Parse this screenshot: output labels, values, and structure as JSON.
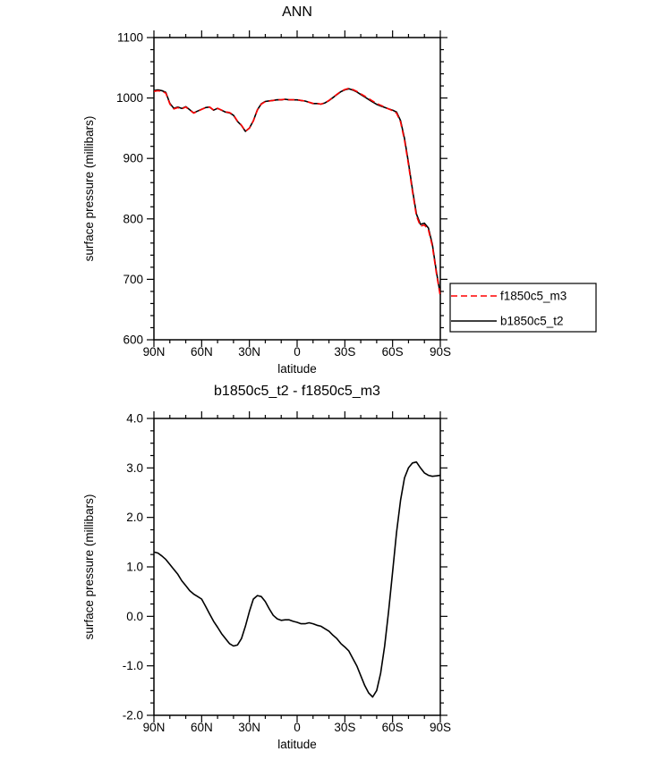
{
  "background": "#ffffff",
  "chart_data": [
    {
      "type": "line",
      "title": "ANN",
      "xlabel": "latitude",
      "ylabel": "surface pressure (millibars)",
      "xlim": [
        90,
        -90
      ],
      "ylim": [
        600,
        1100
      ],
      "grid": false,
      "xticks": {
        "values": [
          90,
          60,
          30,
          0,
          -30,
          -60,
          -90
        ],
        "labels": [
          "90N",
          "60N",
          "30N",
          "0",
          "30S",
          "60S",
          "90S"
        ],
        "minor_step": 10
      },
      "yticks": {
        "values": [
          600,
          700,
          800,
          900,
          1000,
          1100
        ],
        "labels": [
          "600",
          "700",
          "800",
          "900",
          "1000",
          "1100"
        ],
        "minor_step": 20
      },
      "legend": {
        "position": "outside-right-bottom",
        "entries": [
          {
            "label": "f1850c5_m3",
            "color": "#ff0000",
            "style": "dashed"
          },
          {
            "label": "b1850c5_t2",
            "color": "#000000",
            "style": "solid"
          }
        ]
      },
      "x": [
        90,
        87.5,
        85,
        82.5,
        80,
        77.5,
        75,
        72.5,
        70,
        67.5,
        65,
        62.5,
        60,
        57.5,
        55,
        52.5,
        50,
        47.5,
        45,
        42.5,
        40,
        37.5,
        35,
        32.5,
        30,
        27.5,
        25,
        22.5,
        20,
        17.5,
        15,
        12.5,
        10,
        7.5,
        5,
        2.5,
        0,
        -2.5,
        -5,
        -7.5,
        -10,
        -12.5,
        -15,
        -17.5,
        -20,
        -22.5,
        -25,
        -27.5,
        -30,
        -32.5,
        -35,
        -37.5,
        -40,
        -42.5,
        -45,
        -47.5,
        -50,
        -52.5,
        -55,
        -57.5,
        -60,
        -62.5,
        -65,
        -67.5,
        -70,
        -72.5,
        -75,
        -77.5,
        -80,
        -82.5,
        -85,
        -87.5,
        -90
      ],
      "series": [
        {
          "name": "f1850c5_m3",
          "color": "#ff0000",
          "style": "dashed",
          "values": [
            1011,
            1012,
            1011,
            1008,
            990,
            982,
            984,
            982,
            985,
            980,
            975,
            978,
            981,
            984,
            985,
            980,
            983,
            980,
            977,
            976,
            972,
            962,
            955,
            945,
            950,
            962,
            980,
            990,
            994,
            995,
            996,
            997,
            997,
            998,
            997,
            997,
            997,
            996,
            995,
            993,
            991,
            991,
            990,
            992,
            996,
            1001,
            1006,
            1011,
            1014,
            1016,
            1014,
            1011,
            1007,
            1003,
            999,
            995,
            991,
            988,
            985,
            982,
            979,
            975,
            960,
            930,
            890,
            845,
            805,
            788,
            790,
            782,
            755,
            710,
            672
          ]
        },
        {
          "name": "b1850c5_t2",
          "color": "#000000",
          "style": "solid",
          "values": [
            1012.3,
            1013.3,
            1012.2,
            1009.2,
            991.1,
            983,
            984.9,
            982.7,
            985.6,
            980.5,
            975.5,
            978.4,
            981.4,
            984.2,
            985.1,
            979.9,
            982.8,
            979.7,
            976.6,
            975.5,
            971.4,
            961.4,
            954.6,
            944.8,
            950.1,
            962.4,
            980.4,
            990.4,
            994.3,
            995.2,
            996,
            997,
            996.9,
            997.9,
            996.9,
            996.9,
            996.9,
            995.9,
            994.9,
            992.9,
            990.9,
            990.8,
            989.8,
            991.8,
            995.7,
            1000.6,
            1005.6,
            1010.5,
            1013.4,
            1015.3,
            1013.2,
            1010,
            1005.8,
            1001.6,
            997.5,
            993.4,
            989.5,
            986.9,
            984.4,
            982.1,
            979.9,
            976.7,
            962.4,
            932.8,
            893,
            848.1,
            808.1,
            791,
            792.9,
            784.9,
            757.8,
            712.8,
            674.9
          ]
        }
      ]
    },
    {
      "type": "line",
      "title": "b1850c5_t2 - f1850c5_m3",
      "xlabel": "latitude",
      "ylabel": "surface pressure (millibars)",
      "xlim": [
        90,
        -90
      ],
      "ylim": [
        -2.0,
        4.0
      ],
      "grid": false,
      "xticks": {
        "values": [
          90,
          60,
          30,
          0,
          -30,
          -60,
          -90
        ],
        "labels": [
          "90N",
          "60N",
          "30N",
          "0",
          "30S",
          "60S",
          "90S"
        ],
        "minor_step": 10
      },
      "yticks": {
        "values": [
          -2,
          -1,
          0,
          1,
          2,
          3,
          4
        ],
        "labels": [
          "-2.0",
          "-1.0",
          "0.0",
          "1.0",
          "2.0",
          "3.0",
          "4.0"
        ],
        "minor_step": 0.25
      },
      "x": [
        90,
        87.5,
        85,
        82.5,
        80,
        77.5,
        75,
        72.5,
        70,
        67.5,
        65,
        62.5,
        60,
        57.5,
        55,
        52.5,
        50,
        47.5,
        45,
        42.5,
        40,
        37.5,
        35,
        32.5,
        30,
        27.5,
        25,
        22.5,
        20,
        17.5,
        15,
        12.5,
        10,
        7.5,
        5,
        2.5,
        0,
        -2.5,
        -5,
        -7.5,
        -10,
        -12.5,
        -15,
        -17.5,
        -20,
        -22.5,
        -25,
        -27.5,
        -30,
        -32.5,
        -35,
        -37.5,
        -40,
        -42.5,
        -45,
        -47.5,
        -50,
        -52.5,
        -55,
        -57.5,
        -60,
        -62.5,
        -65,
        -67.5,
        -70,
        -72.5,
        -75,
        -77.5,
        -80,
        -82.5,
        -85,
        -87.5,
        -90
      ],
      "series": [
        {
          "name": "b1850c5_t2 - f1850c5_m3",
          "color": "#000000",
          "style": "solid",
          "values": [
            1.3,
            1.28,
            1.22,
            1.15,
            1.05,
            0.95,
            0.85,
            0.72,
            0.62,
            0.52,
            0.45,
            0.4,
            0.35,
            0.2,
            0.05,
            -0.1,
            -0.22,
            -0.35,
            -0.45,
            -0.55,
            -0.6,
            -0.58,
            -0.45,
            -0.2,
            0.1,
            0.35,
            0.42,
            0.4,
            0.3,
            0.15,
            0.02,
            -0.05,
            -0.08,
            -0.07,
            -0.07,
            -0.1,
            -0.12,
            -0.15,
            -0.15,
            -0.13,
            -0.15,
            -0.18,
            -0.2,
            -0.25,
            -0.3,
            -0.38,
            -0.45,
            -0.55,
            -0.62,
            -0.7,
            -0.85,
            -1.0,
            -1.2,
            -1.4,
            -1.55,
            -1.63,
            -1.5,
            -1.15,
            -0.6,
            0.1,
            0.9,
            1.7,
            2.35,
            2.8,
            3.0,
            3.1,
            3.12,
            3.0,
            2.9,
            2.85,
            2.83,
            2.84,
            2.85
          ]
        }
      ]
    }
  ]
}
